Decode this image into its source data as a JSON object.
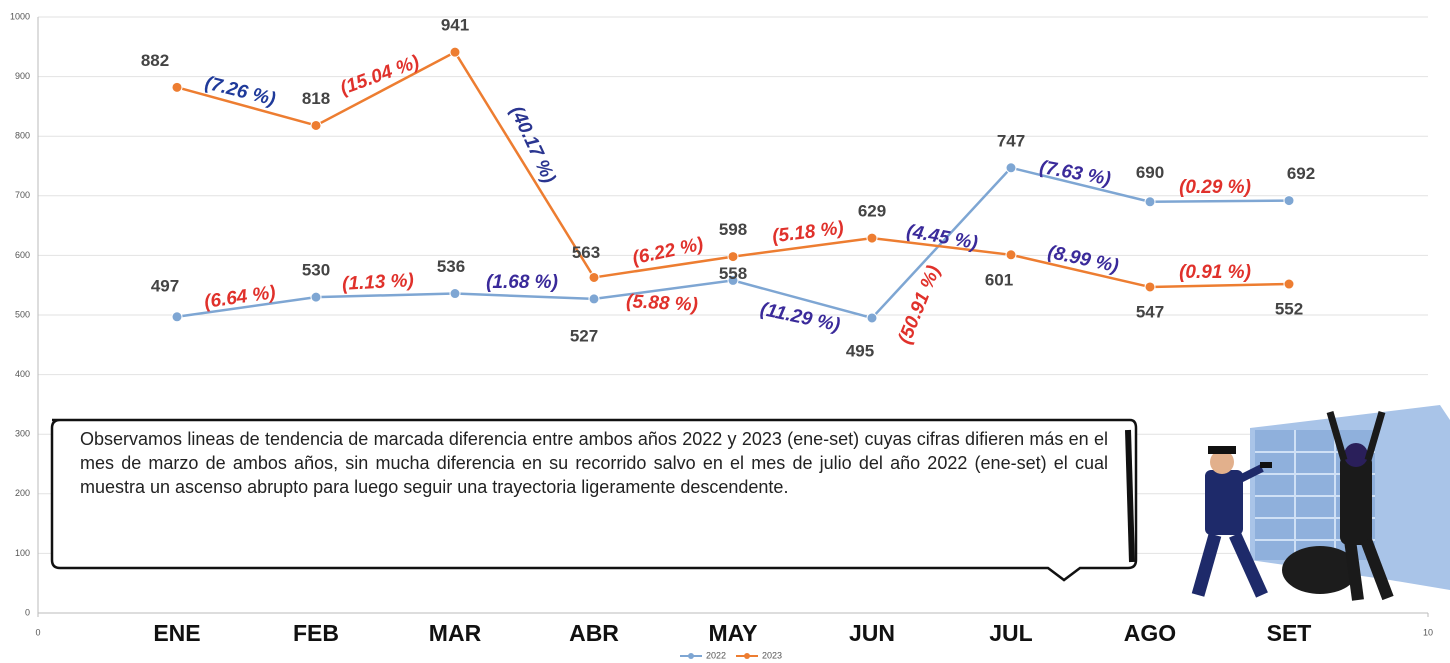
{
  "chart_data": {
    "type": "line",
    "x": [
      1,
      2,
      3,
      4,
      5,
      6,
      7,
      8,
      9
    ],
    "categories": [
      "ENE",
      "FEB",
      "MAR",
      "ABR",
      "MAY",
      "JUN",
      "JUL",
      "AGO",
      "SET"
    ],
    "series": [
      {
        "name": "2022",
        "color": "#7ea6d3",
        "values": [
          497,
          530,
          536,
          527,
          558,
          495,
          747,
          690,
          692
        ]
      },
      {
        "name": "2023",
        "color": "#ed7d31",
        "values": [
          882,
          818,
          941,
          563,
          598,
          629,
          601,
          547,
          552
        ]
      }
    ],
    "xlim": [
      0,
      10
    ],
    "xticks": [
      0,
      10
    ],
    "ylim": [
      0,
      1000
    ],
    "yticks": [
      0,
      100,
      200,
      300,
      400,
      500,
      600,
      700,
      800,
      900,
      1000
    ],
    "grid": true,
    "annotations": [
      {
        "text": "(7.26 %)",
        "color": "#1f3a9a"
      },
      {
        "text": "(15.04 %)",
        "color": "#e0312b"
      },
      {
        "text": "(40.17 %)",
        "color": "#2a3590"
      },
      {
        "text": "(6.22 %)",
        "color": "#e0312b"
      },
      {
        "text": "(5.18 %)",
        "color": "#e0312b"
      },
      {
        "text": "(4.45 %)",
        "color": "#3a2a9a"
      },
      {
        "text": "(8.99 %)",
        "color": "#3a2a9a"
      },
      {
        "text": "(0.91 %)",
        "color": "#e0312b"
      },
      {
        "text": "(6.64 %)",
        "color": "#e0312b"
      },
      {
        "text": "(1.13 %)",
        "color": "#e0312b"
      },
      {
        "text": "(1.68 %)",
        "color": "#3a2a9a"
      },
      {
        "text": "(5.88 %)",
        "color": "#e0312b"
      },
      {
        "text": "(11.29 %)",
        "color": "#3a2a9a"
      },
      {
        "text": "(50.91 %)",
        "color": "#e0312b"
      },
      {
        "text": "(7.63 %)",
        "color": "#3a2a9a"
      },
      {
        "text": "(0.29 %)",
        "color": "#e0312b"
      }
    ],
    "note": "Observamos lineas de tendencia de marcada diferencia entre ambos años 2022 y 2023 (ene-set) cuyas cifras difieren más en el mes de marzo de ambos años,  sin mucha diferencia en su recorrido salvo en el mes de julio del año 2022 (ene-set) el cual muestra un ascenso abrupto para luego seguir una trayectoria ligeramente descendente."
  }
}
